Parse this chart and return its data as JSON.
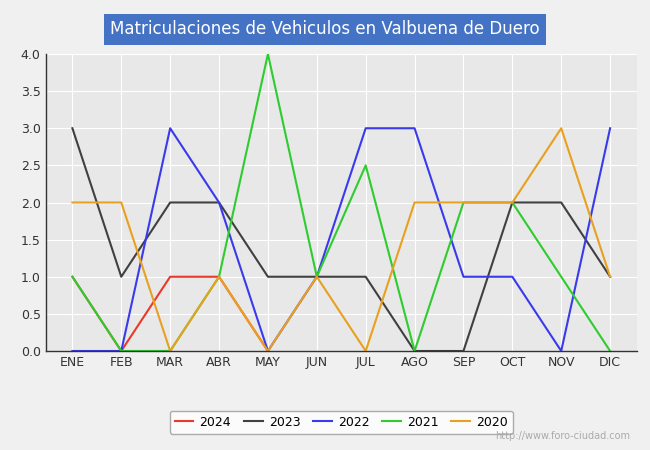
{
  "title": "Matriculaciones de Vehiculos en Valbuena de Duero",
  "months": [
    "ENE",
    "FEB",
    "MAR",
    "ABR",
    "MAY",
    "JUN",
    "JUL",
    "AGO",
    "SEP",
    "OCT",
    "NOV",
    "DIC"
  ],
  "series": {
    "2024": [
      1,
      0,
      1,
      1,
      0,
      null,
      null,
      null,
      null,
      null,
      null,
      null
    ],
    "2023": [
      3,
      1,
      2,
      2,
      1,
      1,
      1,
      0,
      0,
      2,
      2,
      1
    ],
    "2022": [
      0,
      0,
      3,
      2,
      0,
      1,
      3,
      3,
      1,
      1,
      0,
      3
    ],
    "2021": [
      1,
      0,
      0,
      1,
      4,
      1,
      2.5,
      0,
      2,
      2,
      1,
      0
    ],
    "2020": [
      2,
      2,
      0,
      1,
      0,
      1,
      0,
      2,
      2,
      2,
      3,
      1
    ]
  },
  "colors": {
    "2024": "#e8392a",
    "2023": "#404040",
    "2022": "#3a3aed",
    "2021": "#2ecc2e",
    "2020": "#e8a020"
  },
  "ylim": [
    0.0,
    4.0
  ],
  "yticks": [
    0.0,
    0.5,
    1.0,
    1.5,
    2.0,
    2.5,
    3.0,
    3.5,
    4.0
  ],
  "background_color": "#f0f0f0",
  "plot_bg_color": "#e8e8e8",
  "title_bg_color": "#4472c4",
  "title_text_color": "#ffffff",
  "watermark": "http://www.foro-ciudad.com",
  "legend_order": [
    "2024",
    "2023",
    "2022",
    "2021",
    "2020"
  ]
}
